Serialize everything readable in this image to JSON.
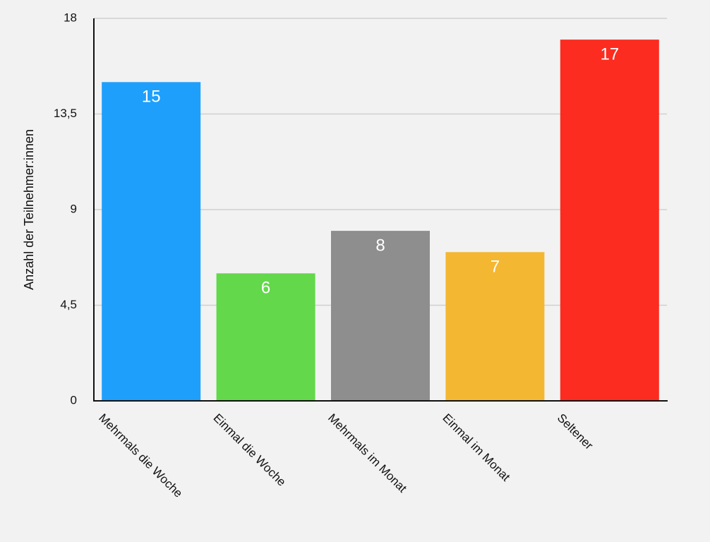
{
  "chart_data": {
    "type": "bar",
    "y_label": "Anzahl der Teilnehmer:innen",
    "categories": [
      "Mehrmals die Woche",
      "Einmal die Woche",
      "Mehrmals im Monat",
      "Einmal im Monat",
      "Seltener"
    ],
    "values": [
      15,
      6,
      8,
      7,
      17
    ],
    "colors": [
      "#1e9ffc",
      "#63d84a",
      "#8e8e8e",
      "#f4b731",
      "#fc2c20"
    ],
    "ylim": [
      0,
      18
    ],
    "yticks": [
      0,
      {
        "value": 4.5,
        "label": "4,5"
      },
      9,
      {
        "value": 13.5,
        "label": "13,5"
      },
      18
    ],
    "grid": true
  }
}
